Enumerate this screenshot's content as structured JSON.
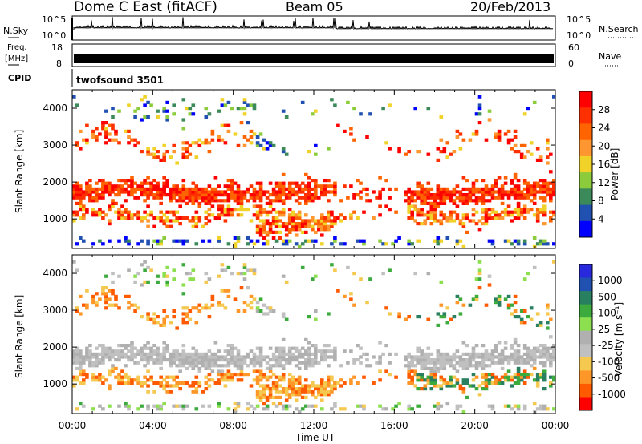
{
  "header": {
    "title": "Dome C East (fitACF)",
    "beam": "Beam 05",
    "date": "20/Feb/2013"
  },
  "strip_panels": {
    "nsky": {
      "label": "N.Sky",
      "left_ticks": [
        "10^5",
        "10^0"
      ],
      "right_ticks": [
        "10^5",
        "10^0"
      ],
      "right_label": "N.Search"
    },
    "freq": {
      "label_line1": "Freq.",
      "label_line2": "[MHz]",
      "left_ticks": [
        "18",
        "8"
      ],
      "right_ticks": [
        "60",
        "0"
      ],
      "right_label": "Nave"
    },
    "cpid": {
      "label": "CPID",
      "text": "twofsound 3501"
    }
  },
  "colors": {
    "power_scale": [
      "#0000ff",
      "#2050b0",
      "#3c8a5a",
      "#8ccc3c",
      "#f0d228",
      "#ff9630",
      "#ff6400",
      "#ff3000",
      "#ff0000"
    ],
    "velocity_scale": [
      "#ff0000",
      "#ff5a00",
      "#ff9628",
      "#f5c850",
      "#c0c0c0",
      "#b0b0b0",
      "#8ce050",
      "#3caa3c",
      "#288060",
      "#2050b0",
      "#2828dc"
    ]
  },
  "chart_data": [
    {
      "type": "heatmap",
      "name": "power",
      "xlabel": "",
      "ylabel": "Slant Range [km]",
      "xlim": [
        0,
        24
      ],
      "ylim": [
        200,
        4500
      ],
      "y_ticks": [
        "1000",
        "2000",
        "3000",
        "4000"
      ],
      "x_ticks": [
        "00:00",
        "04:00",
        "08:00",
        "12:00",
        "16:00",
        "20:00",
        "00:00"
      ],
      "colorbar_label": "Power [dB]",
      "colorbar_ticks": [
        "28",
        "24",
        "20",
        "16",
        "12",
        "8",
        "4"
      ],
      "colorbar_range": [
        0,
        32
      ]
    },
    {
      "type": "heatmap",
      "name": "velocity",
      "xlabel": "Time UT",
      "ylabel": "Slant Range [km]",
      "xlim": [
        0,
        24
      ],
      "ylim": [
        200,
        4500
      ],
      "y_ticks": [
        "1000",
        "2000",
        "3000",
        "4000"
      ],
      "x_ticks": [
        "00:00",
        "04:00",
        "08:00",
        "12:00",
        "16:00",
        "20:00",
        "00:00"
      ],
      "colorbar_label": "Velocity [m s⁻¹]",
      "colorbar_ticks": [
        "1000",
        "500",
        "100",
        "25",
        "-25",
        "-100",
        "-500",
        "-1000"
      ]
    }
  ]
}
